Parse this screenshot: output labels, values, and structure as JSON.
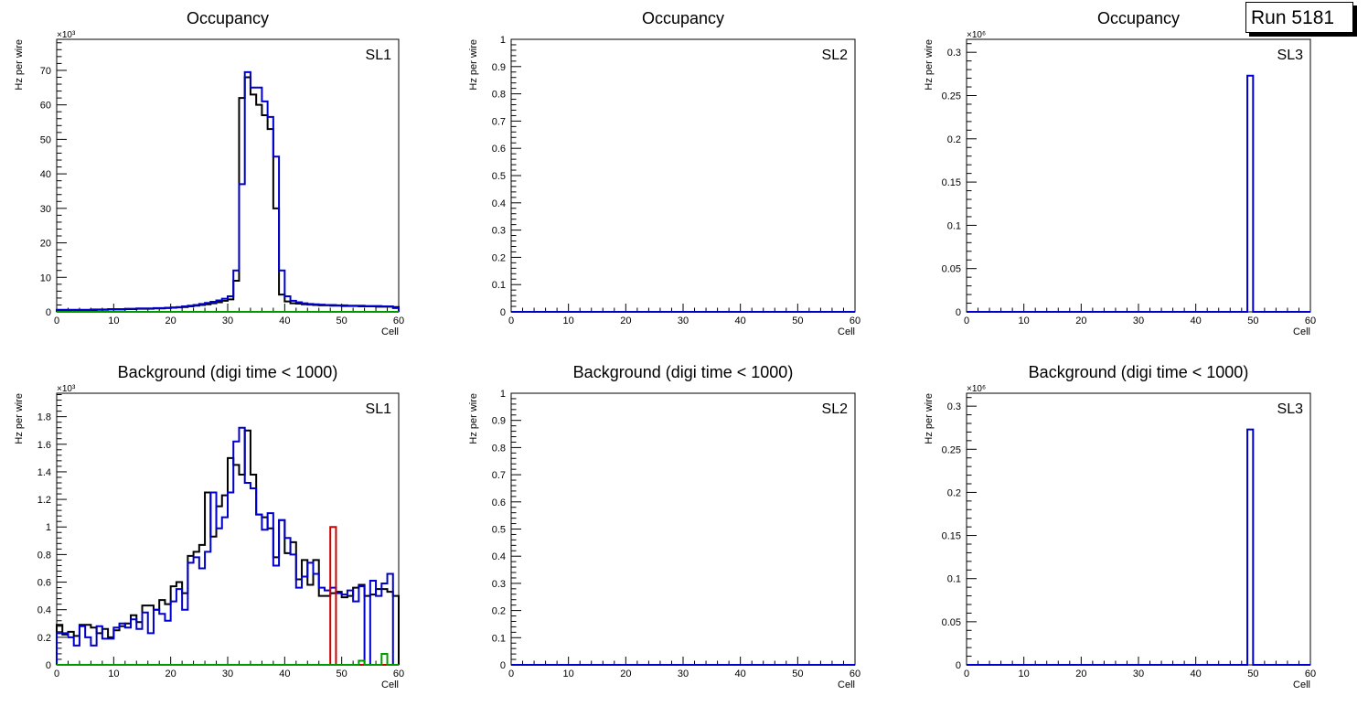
{
  "run_label": "Run 5181",
  "chart_data": [
    {
      "type": "histogram",
      "title": "Occupancy",
      "label": "SL1",
      "xlabel": "Cell",
      "ylabel": "Hz per wire",
      "xlim": [
        0,
        60
      ],
      "ylim": [
        0,
        79000
      ],
      "exponent": "×10³",
      "yticks_labels": [
        "0",
        "10",
        "20",
        "30",
        "40",
        "50",
        "60",
        "70"
      ],
      "xticks_labels": [
        "0",
        "10",
        "20",
        "30",
        "40",
        "50",
        "60"
      ],
      "y_tick_values": [
        0,
        10000,
        20000,
        30000,
        40000,
        50000,
        60000,
        70000
      ],
      "x_tick_values": [
        0,
        10,
        20,
        30,
        40,
        50,
        60
      ],
      "series": [
        {
          "color": "#000000",
          "values": [
            500,
            500,
            500,
            500,
            500,
            500,
            500,
            600,
            600,
            700,
            700,
            700,
            800,
            800,
            900,
            900,
            900,
            1000,
            1000,
            1100,
            1200,
            1300,
            1400,
            1600,
            1800,
            2000,
            2200,
            2500,
            2800,
            3200,
            3600,
            9000,
            62000,
            68000,
            63000,
            60000,
            57000,
            53000,
            30000,
            5000,
            3000,
            2500,
            2400,
            2200,
            2100,
            2000,
            1900,
            1900,
            1800,
            1800,
            1700,
            1700,
            1700,
            1600,
            1600,
            1600,
            1500,
            1500,
            1500,
            1400
          ]
        },
        {
          "color": "#0000cc",
          "values": [
            600,
            600,
            600,
            600,
            600,
            600,
            700,
            700,
            700,
            800,
            800,
            800,
            900,
            900,
            1000,
            1000,
            1000,
            1100,
            1100,
            1200,
            1300,
            1400,
            1600,
            1800,
            2000,
            2300,
            2600,
            2900,
            3300,
            3800,
            4500,
            12000,
            37000,
            69500,
            65000,
            65000,
            61000,
            56500,
            45000,
            12000,
            4500,
            3200,
            2800,
            2500,
            2300,
            2200,
            2100,
            2000,
            2000,
            1900,
            1900,
            1800,
            1800,
            1800,
            1700,
            1700,
            1700,
            1600,
            1600,
            1100
          ]
        },
        {
          "color": "#cc0000",
          "values": [
            0,
            0,
            0,
            0,
            0,
            0,
            0,
            0,
            0,
            0,
            0,
            0,
            0,
            0,
            0,
            0,
            0,
            0,
            0,
            0,
            0,
            0,
            0,
            0,
            0,
            0,
            0,
            0,
            0,
            0,
            0,
            0,
            0,
            0,
            0,
            0,
            0,
            0,
            0,
            0,
            0,
            0,
            0,
            0,
            0,
            0,
            0,
            0,
            0,
            0,
            0,
            0,
            0,
            0,
            0,
            0,
            0,
            0,
            0,
            0
          ]
        },
        {
          "color": "#009900",
          "values": [
            0,
            0,
            0,
            0,
            0,
            0,
            0,
            0,
            0,
            0,
            0,
            0,
            0,
            0,
            0,
            0,
            0,
            0,
            0,
            0,
            0,
            0,
            0,
            0,
            0,
            0,
            0,
            0,
            0,
            0,
            0,
            0,
            0,
            0,
            0,
            0,
            0,
            0,
            0,
            0,
            0,
            0,
            0,
            0,
            0,
            0,
            0,
            0,
            0,
            0,
            0,
            0,
            0,
            0,
            0,
            0,
            0,
            0,
            0,
            0
          ]
        }
      ]
    },
    {
      "type": "histogram",
      "title": "Occupancy",
      "label": "SL2",
      "xlabel": "Cell",
      "ylabel": "Hz per wire",
      "xlim": [
        0,
        60
      ],
      "ylim": [
        0,
        1
      ],
      "exponent": "",
      "yticks_labels": [
        "0",
        "0.1",
        "0.2",
        "0.3",
        "0.4",
        "0.5",
        "0.6",
        "0.7",
        "0.8",
        "0.9",
        "1"
      ],
      "xticks_labels": [
        "0",
        "10",
        "20",
        "30",
        "40",
        "50",
        "60"
      ],
      "y_tick_values": [
        0,
        0.1,
        0.2,
        0.3,
        0.4,
        0.5,
        0.6,
        0.7,
        0.8,
        0.9,
        1
      ],
      "x_tick_values": [
        0,
        10,
        20,
        30,
        40,
        50,
        60
      ],
      "series": [
        {
          "color": "#0000cc",
          "values": [
            0,
            0,
            0,
            0,
            0,
            0,
            0,
            0,
            0,
            0,
            0,
            0,
            0,
            0,
            0,
            0,
            0,
            0,
            0,
            0,
            0,
            0,
            0,
            0,
            0,
            0,
            0,
            0,
            0,
            0,
            0,
            0,
            0,
            0,
            0,
            0,
            0,
            0,
            0,
            0,
            0,
            0,
            0,
            0,
            0,
            0,
            0,
            0,
            0,
            0,
            0,
            0,
            0,
            0,
            0,
            0,
            0,
            0,
            0,
            0
          ]
        }
      ]
    },
    {
      "type": "histogram",
      "title": "Occupancy",
      "label": "SL3",
      "xlabel": "Cell",
      "ylabel": "Hz per wire",
      "xlim": [
        0,
        60
      ],
      "ylim": [
        0,
        0.315
      ],
      "exponent": "×10⁶",
      "yticks_labels": [
        "0",
        "0.05",
        "0.1",
        "0.15",
        "0.2",
        "0.25",
        "0.3"
      ],
      "xticks_labels": [
        "0",
        "10",
        "20",
        "30",
        "40",
        "50",
        "60"
      ],
      "y_tick_values": [
        0,
        0.05,
        0.1,
        0.15,
        0.2,
        0.25,
        0.3
      ],
      "x_tick_values": [
        0,
        10,
        20,
        30,
        40,
        50,
        60
      ],
      "series": [
        {
          "color": "#0000cc",
          "values": [
            0,
            0,
            0,
            0,
            0,
            0,
            0,
            0,
            0,
            0,
            0,
            0,
            0,
            0,
            0,
            0,
            0,
            0,
            0,
            0,
            0,
            0,
            0,
            0,
            0,
            0,
            0,
            0,
            0,
            0,
            0,
            0,
            0,
            0,
            0,
            0,
            0,
            0,
            0,
            0,
            0,
            0,
            0,
            0,
            0,
            0,
            0,
            0,
            0,
            0.273,
            0,
            0,
            0,
            0,
            0,
            0,
            0,
            0,
            0,
            0
          ]
        }
      ]
    },
    {
      "type": "histogram",
      "title": "Background (digi time < 1000)",
      "label": "SL1",
      "xlabel": "Cell",
      "ylabel": "Hz per wire",
      "xlim": [
        0,
        60
      ],
      "ylim": [
        0,
        1970
      ],
      "exponent": "×10³",
      "yticks_labels": [
        "0",
        "0.2",
        "0.4",
        "0.6",
        "0.8",
        "1",
        "1.2",
        "1.4",
        "1.6",
        "1.8"
      ],
      "xticks_labels": [
        "0",
        "10",
        "20",
        "30",
        "40",
        "50",
        "60"
      ],
      "y_tick_values": [
        0,
        200,
        400,
        600,
        800,
        1000,
        1200,
        1400,
        1600,
        1800
      ],
      "x_tick_values": [
        0,
        10,
        20,
        30,
        40,
        50,
        60
      ],
      "series": [
        {
          "color": "#000000",
          "values": [
            290,
            220,
            240,
            210,
            290,
            290,
            270,
            230,
            260,
            200,
            250,
            280,
            300,
            360,
            310,
            430,
            430,
            400,
            470,
            440,
            570,
            600,
            520,
            790,
            820,
            870,
            1250,
            930,
            1150,
            1230,
            1500,
            1450,
            1380,
            1700,
            1380,
            1090,
            1070,
            990,
            780,
            1050,
            810,
            890,
            620,
            760,
            580,
            760,
            500,
            500,
            520,
            530,
            490,
            500,
            560,
            580,
            500,
            510,
            550,
            550,
            530,
            500
          ]
        },
        {
          "color": "#0000cc",
          "values": [
            230,
            230,
            200,
            140,
            280,
            200,
            140,
            280,
            190,
            190,
            270,
            300,
            270,
            330,
            260,
            380,
            230,
            400,
            370,
            320,
            460,
            550,
            400,
            740,
            780,
            700,
            820,
            1250,
            990,
            1070,
            1250,
            1620,
            1720,
            1320,
            1280,
            1090,
            980,
            1100,
            720,
            1050,
            920,
            800,
            560,
            640,
            740,
            660,
            560,
            540,
            560,
            520,
            510,
            540,
            460,
            570,
            0,
            610,
            500,
            590,
            660,
            0
          ]
        },
        {
          "color": "#cc0000",
          "values": [
            0,
            0,
            0,
            0,
            0,
            0,
            0,
            0,
            0,
            0,
            0,
            0,
            0,
            0,
            0,
            0,
            0,
            0,
            0,
            0,
            0,
            0,
            0,
            0,
            0,
            0,
            0,
            0,
            0,
            0,
            0,
            0,
            0,
            0,
            0,
            0,
            0,
            0,
            0,
            0,
            0,
            0,
            0,
            0,
            0,
            0,
            0,
            0,
            1000,
            0,
            0,
            0,
            0,
            0,
            0,
            0,
            0,
            0,
            0,
            0
          ]
        },
        {
          "color": "#009900",
          "values": [
            0,
            0,
            0,
            0,
            0,
            0,
            0,
            0,
            0,
            0,
            0,
            0,
            0,
            0,
            0,
            0,
            0,
            0,
            0,
            0,
            0,
            0,
            0,
            0,
            0,
            0,
            0,
            0,
            0,
            0,
            0,
            0,
            0,
            0,
            0,
            0,
            0,
            0,
            0,
            0,
            0,
            0,
            0,
            0,
            0,
            0,
            0,
            0,
            0,
            0,
            0,
            0,
            0,
            30,
            0,
            0,
            0,
            80,
            0,
            0
          ]
        }
      ]
    },
    {
      "type": "histogram",
      "title": "Background (digi time < 1000)",
      "label": "SL2",
      "xlabel": "Cell",
      "ylabel": "Hz per wire",
      "xlim": [
        0,
        60
      ],
      "ylim": [
        0,
        1
      ],
      "exponent": "",
      "yticks_labels": [
        "0",
        "0.1",
        "0.2",
        "0.3",
        "0.4",
        "0.5",
        "0.6",
        "0.7",
        "0.8",
        "0.9",
        "1"
      ],
      "xticks_labels": [
        "0",
        "10",
        "20",
        "30",
        "40",
        "50",
        "60"
      ],
      "y_tick_values": [
        0,
        0.1,
        0.2,
        0.3,
        0.4,
        0.5,
        0.6,
        0.7,
        0.8,
        0.9,
        1
      ],
      "x_tick_values": [
        0,
        10,
        20,
        30,
        40,
        50,
        60
      ],
      "series": [
        {
          "color": "#0000cc",
          "values": [
            0,
            0,
            0,
            0,
            0,
            0,
            0,
            0,
            0,
            0,
            0,
            0,
            0,
            0,
            0,
            0,
            0,
            0,
            0,
            0,
            0,
            0,
            0,
            0,
            0,
            0,
            0,
            0,
            0,
            0,
            0,
            0,
            0,
            0,
            0,
            0,
            0,
            0,
            0,
            0,
            0,
            0,
            0,
            0,
            0,
            0,
            0,
            0,
            0,
            0,
            0,
            0,
            0,
            0,
            0,
            0,
            0,
            0,
            0,
            0
          ]
        }
      ]
    },
    {
      "type": "histogram",
      "title": "Background (digi time < 1000)",
      "label": "SL3",
      "xlabel": "Cell",
      "ylabel": "Hz per wire",
      "xlim": [
        0,
        60
      ],
      "ylim": [
        0,
        0.315
      ],
      "exponent": "×10⁶",
      "yticks_labels": [
        "0",
        "0.05",
        "0.1",
        "0.15",
        "0.2",
        "0.25",
        "0.3"
      ],
      "xticks_labels": [
        "0",
        "10",
        "20",
        "30",
        "40",
        "50",
        "60"
      ],
      "y_tick_values": [
        0,
        0.05,
        0.1,
        0.15,
        0.2,
        0.25,
        0.3
      ],
      "x_tick_values": [
        0,
        10,
        20,
        30,
        40,
        50,
        60
      ],
      "series": [
        {
          "color": "#0000cc",
          "values": [
            0,
            0,
            0,
            0,
            0,
            0,
            0,
            0,
            0,
            0,
            0,
            0,
            0,
            0,
            0,
            0,
            0,
            0,
            0,
            0,
            0,
            0,
            0,
            0,
            0,
            0,
            0,
            0,
            0,
            0,
            0,
            0,
            0,
            0,
            0,
            0,
            0,
            0,
            0,
            0,
            0,
            0,
            0,
            0,
            0,
            0,
            0,
            0,
            0,
            0.273,
            0,
            0,
            0,
            0,
            0,
            0,
            0,
            0,
            0,
            0
          ]
        }
      ]
    }
  ]
}
